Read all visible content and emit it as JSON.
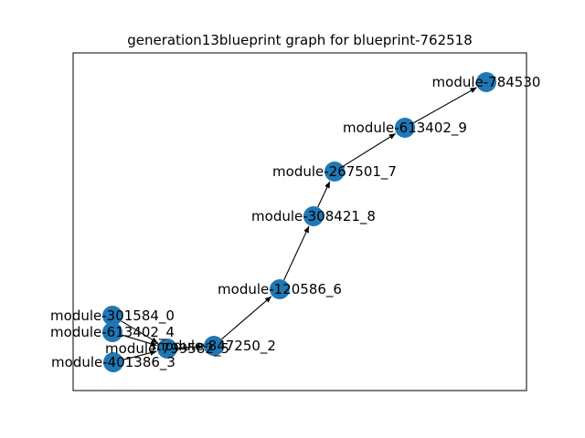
{
  "title": "generation13blueprint graph for blueprint-762518",
  "colors": {
    "node": "#1f77b4",
    "edge": "#000000",
    "frame": "#000000",
    "background": "#ffffff"
  },
  "nodes": [
    {
      "id": "n0",
      "label": "module-301584_0"
    },
    {
      "id": "n1",
      "label": "module-613402_4"
    },
    {
      "id": "n2",
      "label": "module-401386_3"
    },
    {
      "id": "n3",
      "label": "module-799582_5"
    },
    {
      "id": "n4",
      "label": "module-847250_2"
    },
    {
      "id": "n5",
      "label": "module-120586_6"
    },
    {
      "id": "n6",
      "label": "module-308421_8"
    },
    {
      "id": "n7",
      "label": "module-267501_7"
    },
    {
      "id": "n8",
      "label": "module-613402_9"
    },
    {
      "id": "n9",
      "label": "module-784530"
    }
  ],
  "edges": [
    {
      "from": "n0",
      "to": "n3"
    },
    {
      "from": "n1",
      "to": "n3"
    },
    {
      "from": "n2",
      "to": "n3"
    },
    {
      "from": "n3",
      "to": "n4"
    },
    {
      "from": "n4",
      "to": "n5"
    },
    {
      "from": "n5",
      "to": "n6"
    },
    {
      "from": "n6",
      "to": "n7"
    },
    {
      "from": "n7",
      "to": "n8"
    },
    {
      "from": "n8",
      "to": "n9"
    }
  ]
}
